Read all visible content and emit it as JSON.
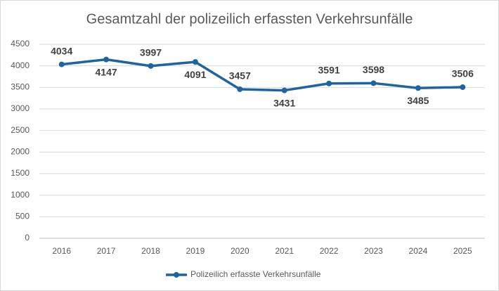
{
  "chart_data": {
    "type": "line",
    "title": "Gesamtzahl der polizeilich erfassten Verkehrsunfälle",
    "categories": [
      "2016",
      "2017",
      "2018",
      "2019",
      "2020",
      "2021",
      "2022",
      "2023",
      "2024",
      "2025"
    ],
    "series": [
      {
        "name": "Polizeilich erfasste Verkehrsunfälle",
        "color": "#1f64a0",
        "values": [
          4034,
          4147,
          3997,
          4091,
          3457,
          3431,
          3591,
          3598,
          3485,
          3506
        ]
      }
    ],
    "ylim": [
      0,
      4500
    ],
    "yticks": [
      0,
      500,
      1000,
      1500,
      2000,
      2500,
      3000,
      3500,
      4000,
      4500
    ],
    "grid": true,
    "legend": "bottom"
  }
}
